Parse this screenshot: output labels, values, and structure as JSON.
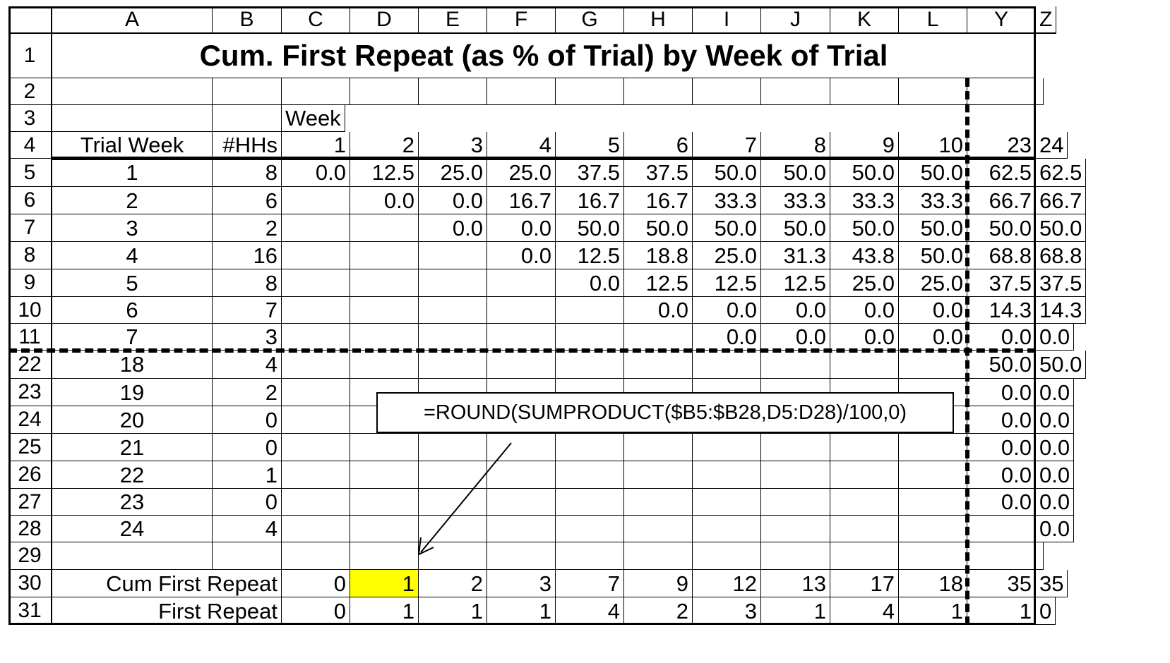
{
  "column_headers": [
    "A",
    "B",
    "C",
    "D",
    "E",
    "F",
    "G",
    "H",
    "I",
    "J",
    "K",
    "L",
    "Y",
    "Z"
  ],
  "row_numbers": [
    "1",
    "2",
    "3",
    "4",
    "5",
    "6",
    "7",
    "8",
    "9",
    "10",
    "11",
    "22",
    "23",
    "24",
    "25",
    "26",
    "27",
    "28",
    "29",
    "30",
    "31"
  ],
  "title": "Cum. First Repeat (as % of Trial) by Week of Trial",
  "week_label": "Week",
  "trial_week_header": "Trial Week",
  "hhs_header": "#HHs",
  "week_numbers": [
    "1",
    "2",
    "3",
    "4",
    "5",
    "6",
    "7",
    "8",
    "9",
    "10",
    "23",
    "24"
  ],
  "data_rows": [
    {
      "trial_week": "1",
      "hhs": "8",
      "values": [
        "0.0",
        "12.5",
        "25.0",
        "25.0",
        "37.5",
        "37.5",
        "50.0",
        "50.0",
        "50.0",
        "50.0",
        "62.5",
        "62.5"
      ]
    },
    {
      "trial_week": "2",
      "hhs": "6",
      "values": [
        "",
        "0.0",
        "0.0",
        "16.7",
        "16.7",
        "16.7",
        "33.3",
        "33.3",
        "33.3",
        "33.3",
        "66.7",
        "66.7"
      ]
    },
    {
      "trial_week": "3",
      "hhs": "2",
      "values": [
        "",
        "",
        "0.0",
        "0.0",
        "50.0",
        "50.0",
        "50.0",
        "50.0",
        "50.0",
        "50.0",
        "50.0",
        "50.0"
      ]
    },
    {
      "trial_week": "4",
      "hhs": "16",
      "values": [
        "",
        "",
        "",
        "0.0",
        "12.5",
        "18.8",
        "25.0",
        "31.3",
        "43.8",
        "50.0",
        "68.8",
        "68.8"
      ]
    },
    {
      "trial_week": "5",
      "hhs": "8",
      "values": [
        "",
        "",
        "",
        "",
        "0.0",
        "12.5",
        "12.5",
        "12.5",
        "25.0",
        "25.0",
        "37.5",
        "37.5"
      ]
    },
    {
      "trial_week": "6",
      "hhs": "7",
      "values": [
        "",
        "",
        "",
        "",
        "",
        "0.0",
        "0.0",
        "0.0",
        "0.0",
        "0.0",
        "14.3",
        "14.3"
      ]
    },
    {
      "trial_week": "7",
      "hhs": "3",
      "values": [
        "",
        "",
        "",
        "",
        "",
        "",
        "0.0",
        "0.0",
        "0.0",
        "0.0",
        "0.0",
        "0.0"
      ]
    },
    {
      "trial_week": "18",
      "hhs": "4",
      "values": [
        "",
        "",
        "",
        "",
        "",
        "",
        "",
        "",
        "",
        "",
        "50.0",
        "50.0"
      ]
    },
    {
      "trial_week": "19",
      "hhs": "2",
      "values": [
        "",
        "",
        "",
        "",
        "",
        "",
        "",
        "",
        "",
        "",
        "0.0",
        "0.0"
      ]
    },
    {
      "trial_week": "20",
      "hhs": "0",
      "values": [
        "",
        "",
        "",
        "",
        "",
        "",
        "",
        "",
        "",
        "",
        "0.0",
        "0.0"
      ]
    },
    {
      "trial_week": "21",
      "hhs": "0",
      "values": [
        "",
        "",
        "",
        "",
        "",
        "",
        "",
        "",
        "",
        "",
        "0.0",
        "0.0"
      ]
    },
    {
      "trial_week": "22",
      "hhs": "1",
      "values": [
        "",
        "",
        "",
        "",
        "",
        "",
        "",
        "",
        "",
        "",
        "0.0",
        "0.0"
      ]
    },
    {
      "trial_week": "23",
      "hhs": "0",
      "values": [
        "",
        "",
        "",
        "",
        "",
        "",
        "",
        "",
        "",
        "",
        "0.0",
        "0.0"
      ]
    },
    {
      "trial_week": "24",
      "hhs": "4",
      "values": [
        "",
        "",
        "",
        "",
        "",
        "",
        "",
        "",
        "",
        "",
        "",
        "0.0"
      ]
    }
  ],
  "cum_first_repeat": {
    "label": "Cum First Repeat",
    "values": [
      "0",
      "1",
      "2",
      "3",
      "7",
      "9",
      "12",
      "13",
      "17",
      "18",
      "35",
      "35"
    ]
  },
  "first_repeat": {
    "label": "First Repeat",
    "values": [
      "0",
      "1",
      "1",
      "1",
      "4",
      "2",
      "3",
      "1",
      "4",
      "1",
      "1",
      "0"
    ]
  },
  "formula": "=ROUND(SUMPRODUCT($B5:$B28,D5:D28)/100,0)",
  "colors": {
    "highlight": "#ffff00",
    "grid": "#000000",
    "background": "#ffffff"
  }
}
